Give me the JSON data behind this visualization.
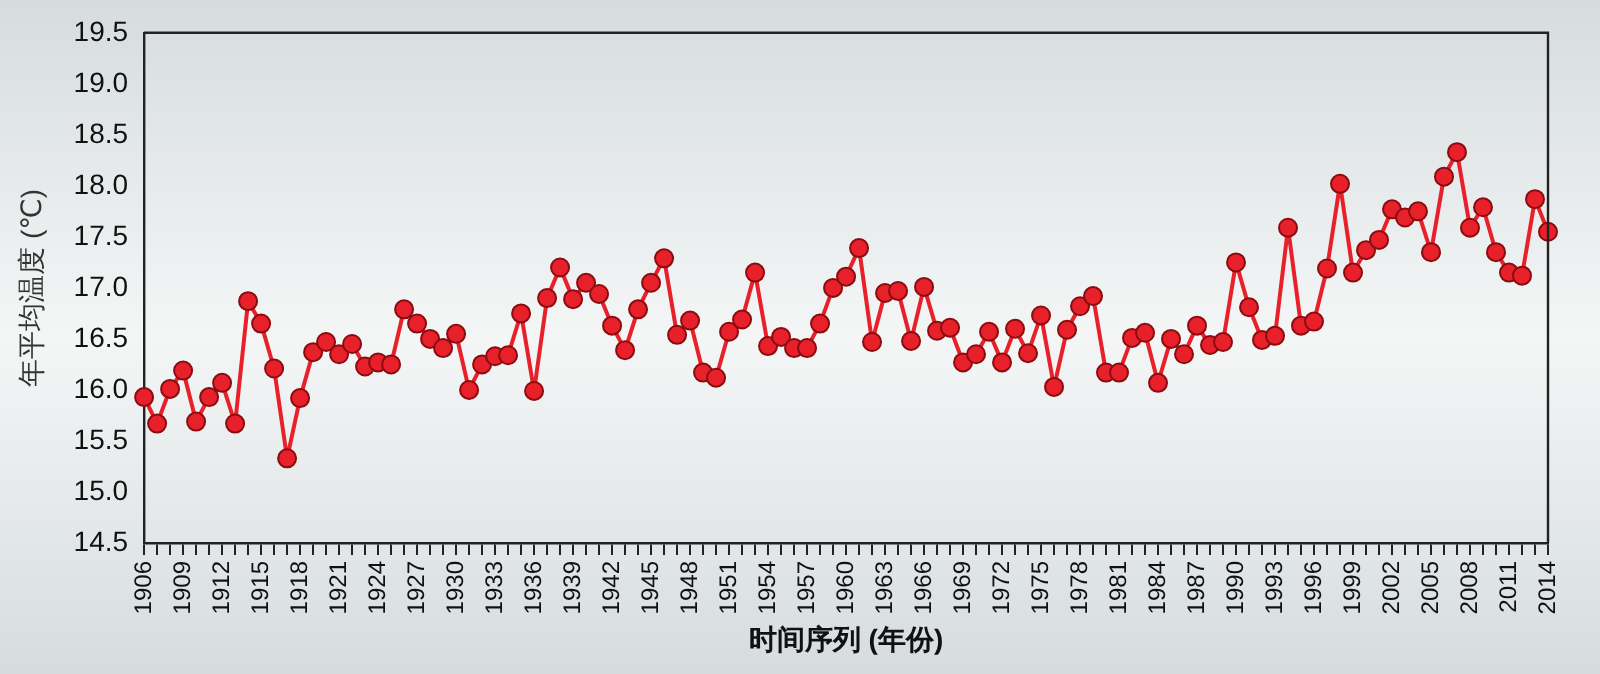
{
  "chart_data": {
    "type": "line",
    "xlabel": "时间序列 (年份)",
    "ylabel": "年平均温度 (℃)",
    "categories": [
      "1906",
      null,
      null,
      "1909",
      null,
      null,
      "1912",
      null,
      null,
      "1915",
      null,
      null,
      "1918",
      null,
      null,
      "1921",
      null,
      null,
      "1924",
      null,
      null,
      "1927",
      null,
      null,
      "1930",
      null,
      null,
      "1933",
      null,
      null,
      "1936",
      null,
      null,
      "1939",
      null,
      null,
      "1942",
      null,
      null,
      "1945",
      null,
      null,
      "1948",
      null,
      null,
      "1951",
      null,
      null,
      "1954",
      null,
      null,
      "1957",
      null,
      null,
      "1960",
      null,
      null,
      "1963",
      null,
      null,
      "1966",
      null,
      null,
      "1969",
      null,
      null,
      "1972",
      null,
      null,
      "1975",
      null,
      null,
      "1978",
      null,
      null,
      "1981",
      null,
      null,
      "1984",
      null,
      null,
      "1987",
      null,
      null,
      "1990",
      null,
      null,
      "1993",
      null,
      null,
      "1996",
      null,
      null,
      "1999",
      null,
      null,
      "2002",
      null,
      null,
      "2005",
      null,
      null,
      "2008",
      null,
      null,
      "2011",
      null,
      null,
      "2014"
    ],
    "series": [
      {
        "color": "#e8202a",
        "values": [
          15.93,
          15.67,
          16.01,
          16.19,
          15.69,
          15.93,
          16.07,
          15.67,
          16.87,
          16.65,
          16.21,
          15.33,
          15.92,
          16.37,
          16.47,
          16.35,
          16.45,
          16.23,
          16.27,
          16.25,
          16.79,
          16.65,
          16.5,
          16.41,
          16.55,
          16.0,
          16.25,
          16.33,
          16.34,
          16.75,
          15.99,
          16.9,
          17.2,
          16.89,
          17.05,
          16.94,
          16.63,
          16.39,
          16.79,
          17.05,
          17.29,
          16.54,
          16.68,
          16.17,
          16.12,
          16.57,
          16.69,
          17.15,
          16.43,
          16.52,
          16.41,
          16.41,
          16.65,
          17.0,
          17.11,
          17.39,
          16.47,
          16.95,
          16.97,
          16.48,
          17.01,
          16.58,
          16.61,
          16.27,
          16.35,
          16.57,
          16.27,
          16.6,
          16.36,
          16.73,
          16.03,
          16.59,
          16.82,
          16.92,
          16.17,
          16.17,
          16.51,
          16.56,
          16.07,
          16.5,
          16.35,
          16.63,
          16.44,
          16.47,
          17.25,
          16.81,
          16.49,
          16.53,
          17.59,
          16.63,
          16.67,
          17.19,
          18.02,
          17.15,
          17.37,
          17.47,
          17.77,
          17.69,
          17.75,
          17.35,
          18.09,
          18.33,
          17.59,
          17.79,
          17.35,
          17.15,
          17.12,
          17.87,
          17.55
        ]
      }
    ],
    "ylim": [
      14.5,
      19.5
    ],
    "yticks": [
      14.5,
      {
        "value": 15,
        "label": "15.0"
      },
      15.5,
      {
        "value": 16,
        "label": "16.0"
      },
      16.5,
      {
        "value": 17,
        "label": "17.0"
      },
      17.5,
      {
        "value": 18,
        "label": "18.0"
      },
      18.5,
      {
        "value": 19,
        "label": "19.0"
      },
      19.5
    ],
    "marker": "circle",
    "line_style": "solid",
    "legend": false
  }
}
